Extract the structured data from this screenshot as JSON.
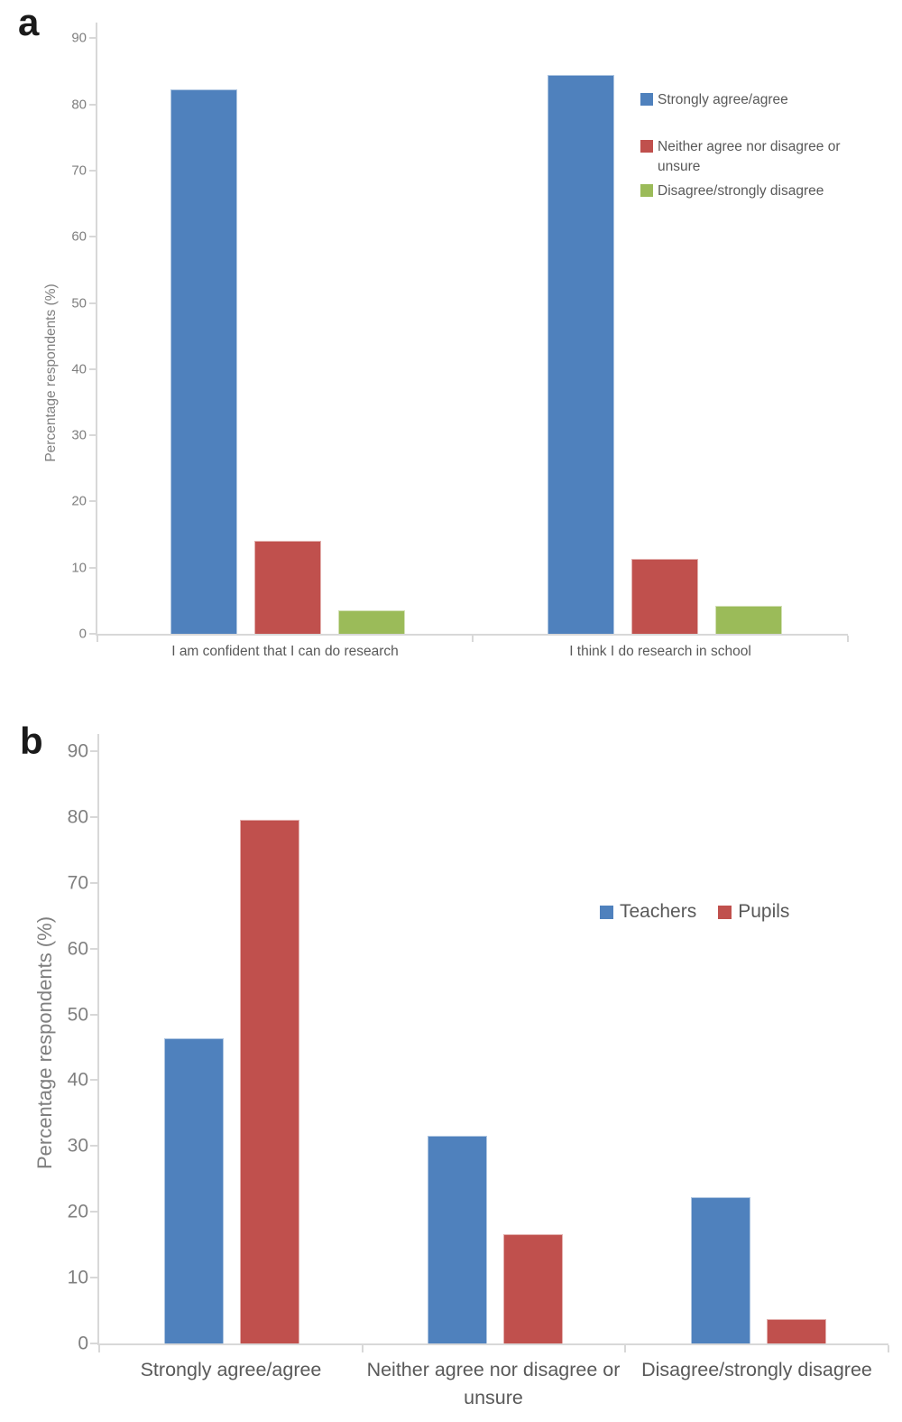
{
  "style": {
    "background": "#FFFFFF",
    "axis_line_color": "#D8D8D8",
    "tick_text_color": "#7F7F7F",
    "label_text_color": "#595959",
    "series_blue": "#4F81BD",
    "series_red": "#C0504D",
    "series_green": "#9BBB59"
  },
  "chart_data": [
    {
      "id": "a",
      "panel_label": "a",
      "type": "bar",
      "title": "",
      "xlabel": "",
      "ylabel": "Percentage respondents (%)",
      "ylim": [
        0,
        90
      ],
      "ytick_step": 10,
      "grid": false,
      "legend_position": "right-top-vertical",
      "categories": [
        "I am confident that I can do research",
        "I think I do research in school"
      ],
      "series": [
        {
          "name": "Strongly agree/agree",
          "color": "#4F81BD",
          "values": [
            82.2,
            84.4
          ]
        },
        {
          "name": "Neither agree nor disagree or unsure",
          "color": "#C0504D",
          "values": [
            14.1,
            11.3
          ]
        },
        {
          "name": "Disagree/strongly disagree",
          "color": "#9BBB59",
          "values": [
            3.6,
            4.2
          ]
        }
      ]
    },
    {
      "id": "b",
      "panel_label": "b",
      "type": "bar",
      "title": "",
      "xlabel": "",
      "ylabel": "Percentage respondents (%)",
      "ylim": [
        0,
        90
      ],
      "ytick_step": 10,
      "grid": false,
      "legend_position": "right-middle-horizontal",
      "categories": [
        "Strongly agree/agree",
        "Neither agree nor disagree or unsure",
        "Disagree/strongly disagree"
      ],
      "series": [
        {
          "name": "Teachers",
          "color": "#4F81BD",
          "values": [
            46.3,
            31.5,
            22.2
          ]
        },
        {
          "name": "Pupils",
          "color": "#C0504D",
          "values": [
            79.5,
            16.6,
            3.7
          ]
        }
      ]
    }
  ]
}
